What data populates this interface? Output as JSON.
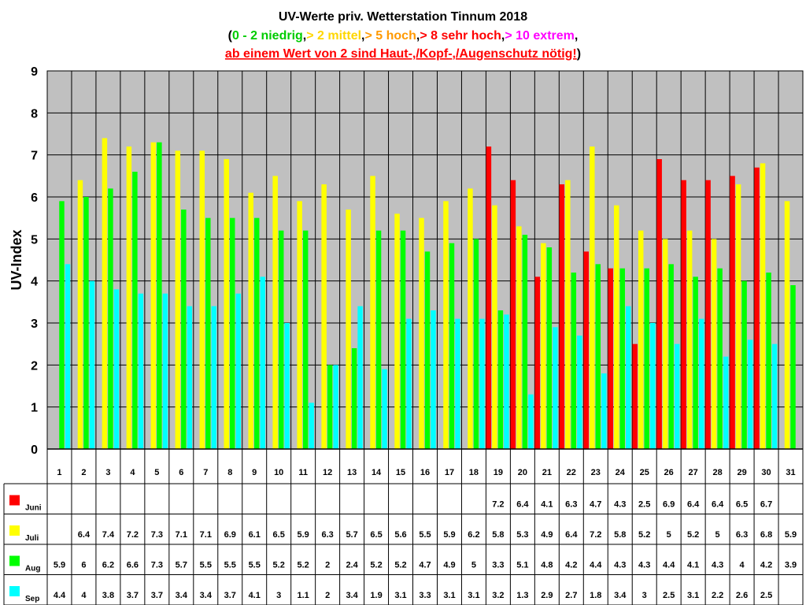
{
  "chart_data": {
    "type": "bar",
    "title": "UV-Werte priv. Wetterstation Tinnum 2018",
    "subtitle_parts": [
      {
        "text": "(",
        "color": "#000000"
      },
      {
        "text": "0 - 2 niedrig",
        "color": "#00cc00"
      },
      {
        "text": ",",
        "color": "#000000"
      },
      {
        "text": "> 2 mittel",
        "color": "#ffd700"
      },
      {
        "text": ",",
        "color": "#000000"
      },
      {
        "text": "> 5 hoch",
        "color": "#ff9900"
      },
      {
        "text": ",",
        "color": "#000000"
      },
      {
        "text": "> 8 sehr hoch",
        "color": "#ff0000"
      },
      {
        "text": ",",
        "color": "#000000"
      },
      {
        "text": "> 10 extrem",
        "color": "#ff00ff"
      },
      {
        "text": ",",
        "color": "#000000"
      }
    ],
    "note_underlined": "ab einem Wert von 2 sind Haut-,/Kopf-,/Augenschutz nötig!",
    "note_close": ")",
    "note_color": "#ff0000",
    "ylabel": "UV-Index",
    "ylim": [
      0,
      9
    ],
    "yticks": [
      0,
      1,
      2,
      3,
      4,
      5,
      6,
      7,
      8,
      9
    ],
    "grid": true,
    "plot_background": "#c0c0c0",
    "categories": [
      "1",
      "2",
      "3",
      "4",
      "5",
      "6",
      "7",
      "8",
      "9",
      "10",
      "11",
      "12",
      "13",
      "14",
      "15",
      "16",
      "17",
      "18",
      "19",
      "20",
      "21",
      "22",
      "23",
      "24",
      "25",
      "26",
      "27",
      "28",
      "29",
      "30",
      "31"
    ],
    "series": [
      {
        "name": "Juni",
        "color": "#ff0000",
        "values": [
          null,
          null,
          null,
          null,
          null,
          null,
          null,
          null,
          null,
          null,
          null,
          null,
          null,
          null,
          null,
          null,
          null,
          null,
          7.2,
          6.4,
          4.1,
          6.3,
          4.7,
          4.3,
          2.5,
          6.9,
          6.4,
          6.4,
          6.5,
          6.7,
          null
        ]
      },
      {
        "name": "Juli",
        "color": "#ffff00",
        "values": [
          null,
          6.4,
          7.4,
          7.2,
          7.3,
          7.1,
          7.1,
          6.9,
          6.1,
          6.5,
          5.9,
          6.3,
          5.7,
          6.5,
          5.6,
          5.5,
          5.9,
          6.2,
          5.8,
          5.3,
          4.9,
          6.4,
          7.2,
          5.8,
          5.2,
          5,
          5.2,
          5,
          6.3,
          6.8,
          5.9
        ]
      },
      {
        "name": "Aug",
        "color": "#00ff00",
        "values": [
          5.9,
          6,
          6.2,
          6.6,
          7.3,
          5.7,
          5.5,
          5.5,
          5.5,
          5.2,
          5.2,
          2,
          2.4,
          5.2,
          5.2,
          4.7,
          4.9,
          5,
          3.3,
          5.1,
          4.8,
          4.2,
          4.4,
          4.3,
          4.3,
          4.4,
          4.1,
          4.3,
          4,
          4.2,
          3.9
        ]
      },
      {
        "name": "Sep",
        "color": "#00ffff",
        "values": [
          4.4,
          4,
          3.8,
          3.7,
          3.7,
          3.4,
          3.4,
          3.7,
          4.1,
          3,
          1.1,
          2,
          3.4,
          1.9,
          3.1,
          3.3,
          3.1,
          3.1,
          3.2,
          1.3,
          2.9,
          2.7,
          1.8,
          3.4,
          3,
          2.5,
          3.1,
          2.2,
          2.6,
          2.5,
          null
        ]
      }
    ]
  }
}
